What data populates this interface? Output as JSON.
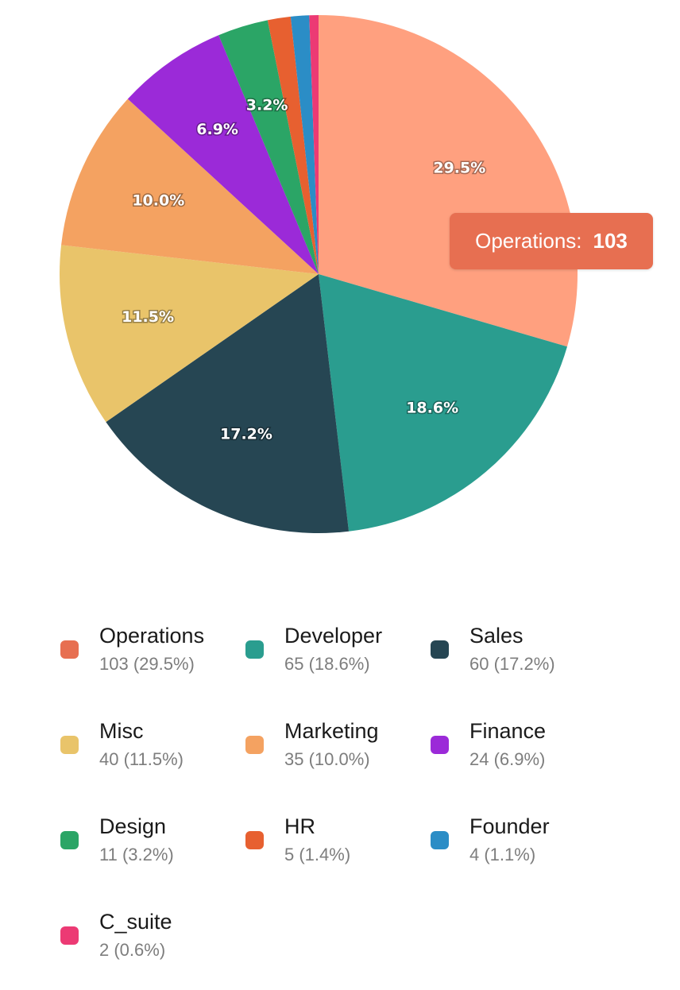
{
  "chart_data": {
    "type": "pie",
    "slices": [
      {
        "name": "Operations",
        "value": 103,
        "percent": "29.5%",
        "legend_detail": "103 (29.5%)",
        "color": "#FFA07F",
        "legend_color": "#E76F51",
        "slice_label": "29.5%"
      },
      {
        "name": "Developer",
        "value": 65,
        "percent": "18.6%",
        "legend_detail": "65 (18.6%)",
        "color": "#2A9D8F",
        "legend_color": "#2A9D8F",
        "slice_label": "18.6%"
      },
      {
        "name": "Sales",
        "value": 60,
        "percent": "17.2%",
        "legend_detail": "60 (17.2%)",
        "color": "#264653",
        "legend_color": "#264653",
        "slice_label": "17.2%"
      },
      {
        "name": "Misc",
        "value": 40,
        "percent": "11.5%",
        "legend_detail": "40 (11.5%)",
        "color": "#E9C46A",
        "legend_color": "#E9C46A",
        "slice_label": "11.5%"
      },
      {
        "name": "Marketing",
        "value": 35,
        "percent": "10.0%",
        "legend_detail": "35 (10.0%)",
        "color": "#F4A261",
        "legend_color": "#F4A261",
        "slice_label": "10.0%"
      },
      {
        "name": "Finance",
        "value": 24,
        "percent": "6.9%",
        "legend_detail": "24 (6.9%)",
        "color": "#9B2AD8",
        "legend_color": "#9B2AD8",
        "slice_label": "6.9%"
      },
      {
        "name": "Design",
        "value": 11,
        "percent": "3.2%",
        "legend_detail": "11 (3.2%)",
        "color": "#2BA566",
        "legend_color": "#2BA566",
        "slice_label": "3.2%"
      },
      {
        "name": "HR",
        "value": 5,
        "percent": "1.4%",
        "legend_detail": "5 (1.4%)",
        "color": "#E76030",
        "legend_color": "#E76030",
        "slice_label": ""
      },
      {
        "name": "Founder",
        "value": 4,
        "percent": "1.1%",
        "legend_detail": "4 (1.1%)",
        "color": "#2B8DC6",
        "legend_color": "#2B8DC6",
        "slice_label": ""
      },
      {
        "name": "C_suite",
        "value": 2,
        "percent": "0.6%",
        "legend_detail": "2 (0.6%)",
        "color": "#EC3A74",
        "legend_color": "#EC3A74",
        "slice_label": ""
      }
    ],
    "tooltip": {
      "label": "Operations:",
      "value": "103",
      "color": "#E76F51"
    },
    "legend_placement": "bottom"
  }
}
